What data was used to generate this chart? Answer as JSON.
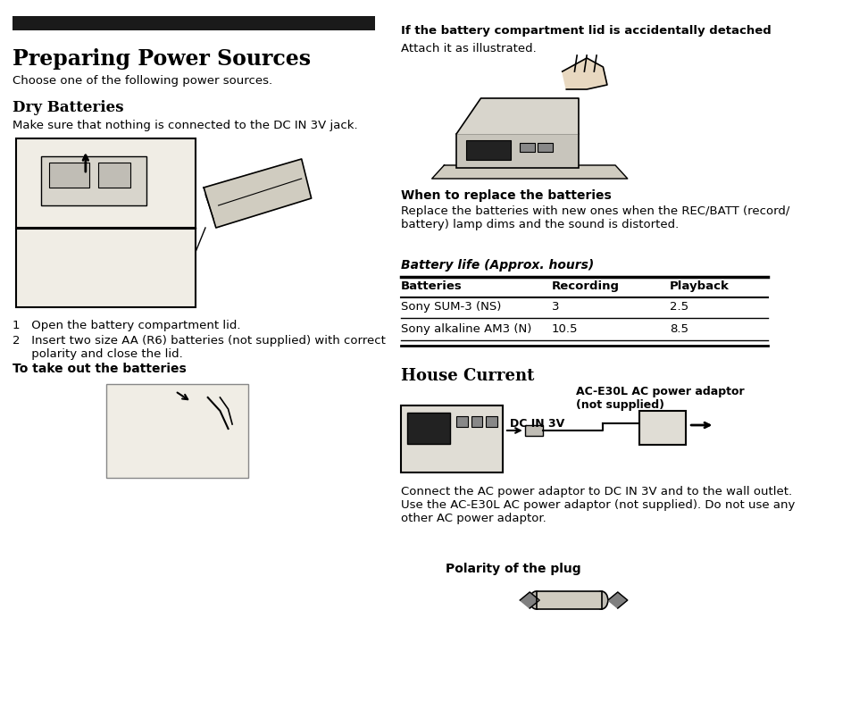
{
  "bg_color": "#f5f0e8",
  "title_bar_color": "#1a1a1a",
  "title_text": "Preparing Power Sources",
  "title_fontsize": 18,
  "subtitle": "Choose one of the following power sources.",
  "section1_title": "Dry Batteries",
  "section1_body": "Make sure that nothing is connected to the DC IN 3V jack.",
  "steps": [
    "1   Open the battery compartment lid.",
    "2   Insert two size AA (R6) batteries (not supplied) with correct\n     polarity and close the lid."
  ],
  "takeout_title": "To take out the batteries",
  "right_top_bold": "If the battery compartment lid is accidentally detached",
  "right_top_body": "Attach it as illustrated.",
  "when_title": "When to replace the batteries",
  "when_body": "Replace the batteries with new ones when the REC/BATT (record/\nbattery) lamp dims and the sound is distorted.",
  "table_title": "Battery life (Approx. hours)",
  "table_headers": [
    "Batteries",
    "Recording",
    "Playback"
  ],
  "table_rows": [
    [
      "Sony SUM-3 (NS)",
      "3",
      "2.5"
    ],
    [
      "Sony alkaline AM3 (N)",
      "10.5",
      "8.5"
    ]
  ],
  "house_title": "House Current",
  "dc_label": "DC IN 3V",
  "ac_label": "AC-E30L AC power adaptor\n(not supplied)",
  "house_body": "Connect the AC power adaptor to DC IN 3V and to the wall outlet.\nUse the AC-E30L AC power adaptor (not supplied). Do not use any\nother AC power adaptor.",
  "polarity_label": "Polarity of the plug",
  "page_bg": "#ffffff"
}
